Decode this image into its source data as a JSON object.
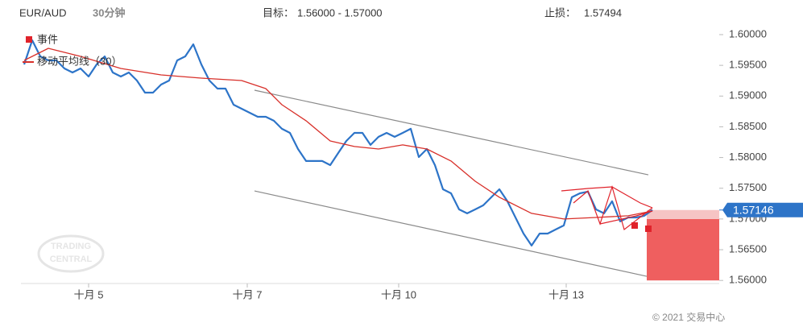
{
  "chart_data": {
    "type": "line",
    "symbol": "EUR/AUD",
    "timeframe": "30分钟",
    "target_label": "目标：",
    "target_text": "1.56000 - 1.57000",
    "stop_label": "止损：",
    "stop_text": "1.57494",
    "legend": {
      "events": "事件",
      "ma": "移动平均线（30）"
    },
    "watermark": [
      "TRADING",
      "CENTRAL"
    ],
    "footer": "© 2021 交易中心",
    "xlim": [
      0,
      78
    ],
    "ylim": [
      1.5595,
      1.6017
    ],
    "xticks": [
      {
        "value": 8,
        "label": "十月 5"
      },
      {
        "value": 27.7,
        "label": "十月 7"
      },
      {
        "value": 46.5,
        "label": "十月 10"
      },
      {
        "value": 67.3,
        "label": "十月 13"
      }
    ],
    "yticks": [
      {
        "value": 1.6,
        "label": "1.60000"
      },
      {
        "value": 1.595,
        "label": "1.59500"
      },
      {
        "value": 1.59,
        "label": "1.59000"
      },
      {
        "value": 1.585,
        "label": "1.58500"
      },
      {
        "value": 1.58,
        "label": "1.58000"
      },
      {
        "value": 1.575,
        "label": "1.57500"
      },
      {
        "value": 1.57,
        "label": "1.57000"
      },
      {
        "value": 1.565,
        "label": "1.56500"
      },
      {
        "value": 1.56,
        "label": "1.56000"
      }
    ],
    "series": [
      {
        "color": "#2d74c8",
        "x": [
          0,
          1,
          2,
          3,
          4,
          5,
          6,
          7,
          8,
          9,
          10,
          11,
          12,
          13,
          14,
          15,
          16,
          17,
          18,
          19,
          20,
          21,
          22,
          23,
          24,
          25,
          26,
          27,
          28,
          29,
          30,
          31,
          32,
          33,
          34,
          35,
          36,
          37,
          38,
          39,
          40,
          41,
          42,
          43,
          44,
          45,
          46,
          47,
          48,
          49,
          50,
          51,
          52,
          53,
          54,
          55,
          56,
          57,
          58,
          59,
          60,
          61,
          62,
          63,
          64,
          65,
          66,
          67,
          68,
          69,
          70,
          71,
          72,
          73,
          74,
          75,
          76,
          77,
          78
        ],
        "values": [
          1.59515,
          1.59908,
          1.59646,
          1.5958,
          1.5958,
          1.59449,
          1.59384,
          1.59449,
          1.59318,
          1.59515,
          1.59646,
          1.59384,
          1.59318,
          1.59384,
          1.59252,
          1.59056,
          1.59056,
          1.59187,
          1.59252,
          1.5958,
          1.59646,
          1.59842,
          1.59515,
          1.59252,
          1.59122,
          1.59122,
          1.5886,
          1.58794,
          1.58729,
          1.58663,
          1.58663,
          1.58598,
          1.58467,
          1.58401,
          1.58139,
          1.57943,
          1.57943,
          1.57943,
          1.57877,
          1.58074,
          1.5827,
          1.58401,
          1.58401,
          1.58205,
          1.58336,
          1.58401,
          1.58336,
          1.58401,
          1.58467,
          1.58008,
          1.58139,
          1.57877,
          1.57484,
          1.57418,
          1.57156,
          1.57091,
          1.57156,
          1.57222,
          1.57353,
          1.57484,
          1.57288,
          1.57025,
          1.56763,
          1.56567,
          1.56763,
          1.56763,
          1.56829,
          1.56895,
          1.57353,
          1.57418,
          1.57445,
          1.57156,
          1.57091,
          1.57288,
          1.5696,
          1.57025,
          1.57025,
          1.57052,
          1.57146
        ]
      },
      {
        "name": "移动平均线（30）",
        "color": "#d8302a",
        "x": [
          0,
          3,
          7,
          12,
          17,
          22,
          27,
          30,
          32,
          35,
          38,
          41,
          44,
          47,
          50,
          53,
          56,
          59,
          63,
          67,
          71,
          75,
          78
        ],
        "values": [
          1.5958,
          1.59777,
          1.59646,
          1.59449,
          1.59344,
          1.59292,
          1.59252,
          1.59122,
          1.5886,
          1.58598,
          1.5827,
          1.58179,
          1.58139,
          1.58205,
          1.58139,
          1.57943,
          1.57615,
          1.57353,
          1.57091,
          1.57,
          1.57025,
          1.57052,
          1.5713
        ]
      }
    ],
    "trend_lines": [
      {
        "color": "#8a8a8a",
        "x": [
          28.6,
          77.5
        ],
        "values": [
          1.59095,
          1.57718
        ]
      },
      {
        "color": "#8a8a8a",
        "x": [
          28.6,
          77.3
        ],
        "values": [
          1.57456,
          1.56067
        ]
      }
    ],
    "target_zone": {
      "color": "#ef5f5f",
      "range": [
        1.56,
        1.57
      ]
    },
    "last_value": 1.57146,
    "last_color": "#2d74c8"
  }
}
